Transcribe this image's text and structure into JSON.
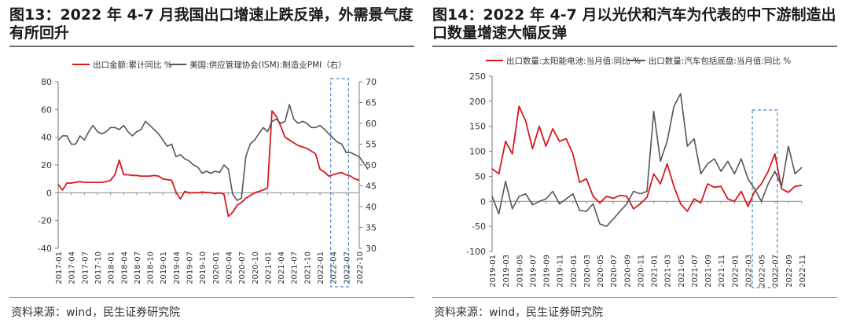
{
  "colors": {
    "red": "#d7191c",
    "gray": "#555555",
    "highlight": "#4a86c5"
  },
  "charts": [
    {
      "title": "图13：2022 年 4-7 月我国出口增速止跌反弹，外需景气度有所回升",
      "source": "资料来源：wind，民生证券研究院"
    },
    {
      "title": "图14：2022 年 4-7 月以光伏和汽车为代表的中下游制造出口数量增速大幅反弹",
      "source": "资料来源：wind，民生证券研究院"
    }
  ],
  "chart_data": [
    {
      "type": "line",
      "title": "2022 年 4-7 月我国出口增速止跌反弹，外需景气度有所回升",
      "x_start": "2017-01",
      "x_tick_labels": [
        "2017-01",
        "2017-04",
        "2017-07",
        "2017-10",
        "2018-01",
        "2018-04",
        "2018-07",
        "2018-10",
        "2019-01",
        "2019-04",
        "2019-07",
        "2019-10",
        "2020-01",
        "2020-04",
        "2020-07",
        "2020-10",
        "2021-01",
        "2021-04",
        "2021-07",
        "2021-10",
        "2022-01",
        "2022-04",
        "2022-07",
        "2022-10"
      ],
      "y_left": {
        "min": -40,
        "max": 80,
        "ticks": [
          -40,
          -20,
          0,
          20,
          40,
          60,
          80
        ]
      },
      "y_right": {
        "min": 30,
        "max": 70,
        "ticks": [
          30,
          35,
          40,
          45,
          50,
          55,
          60,
          65,
          70
        ]
      },
      "highlight": {
        "from": "2022-04",
        "to": "2022-07"
      },
      "legend_position": "top",
      "series": [
        {
          "name": "出口金额:累计同比 %",
          "color": "#d7191c",
          "axis": "left",
          "values": [
            6,
            2,
            7,
            7,
            7.5,
            8,
            7.5,
            7.5,
            7.5,
            7.5,
            7.5,
            8,
            9,
            13,
            23.5,
            13,
            13,
            12.5,
            12.5,
            12,
            12,
            12,
            12.5,
            12,
            10,
            9.5,
            9,
            0.5,
            -4.5,
            1,
            0,
            0,
            0,
            0.5,
            0,
            0,
            -0.5,
            0,
            -1,
            -17,
            -14,
            -9,
            -7,
            -4,
            -2,
            0,
            1,
            2,
            3.5,
            59,
            55,
            48,
            40,
            38,
            36,
            34,
            33,
            32,
            30,
            28,
            17,
            15,
            12,
            13,
            14,
            14.5,
            13,
            12,
            10,
            9
          ]
        },
        {
          "name": "美国:供应管理协会(ISM):制造业PMI（右）",
          "color": "#555555",
          "axis": "right",
          "values": [
            56,
            57,
            57,
            55,
            55,
            57,
            56,
            58,
            59.5,
            58,
            57.5,
            58,
            59,
            59,
            58.5,
            59.5,
            58,
            57,
            58,
            58.5,
            60.5,
            59.5,
            58.5,
            57.5,
            56,
            54.5,
            55,
            52,
            52.5,
            51.5,
            51,
            50,
            49.5,
            48,
            48.5,
            48,
            48.5,
            48.2,
            50,
            49,
            43,
            41.5,
            42,
            52,
            55,
            56,
            57.5,
            59,
            58,
            60.5,
            61,
            60,
            60.5,
            64.5,
            61,
            60,
            60.5,
            60,
            59,
            59,
            59.5,
            58.6,
            57.5,
            56.5,
            55.5,
            55,
            53,
            53,
            52.5,
            52,
            50.5,
            49
          ]
        }
      ]
    },
    {
      "type": "line",
      "title": "2022 年 4-7 月以光伏和汽车为代表的中下游制造出口数量增速大幅反弹",
      "x_start": "2019-01",
      "x_tick_labels": [
        "2019-01",
        "2019-03",
        "2019-05",
        "2019-07",
        "2019-09",
        "2019-11",
        "2020-01",
        "2020-03",
        "2020-05",
        "2020-07",
        "2020-09",
        "2020-11",
        "2021-01",
        "2021-03",
        "2021-05",
        "2021-07",
        "2021-09",
        "2021-11",
        "2022-01",
        "2022-03",
        "2022-05",
        "2022-07",
        "2022-09",
        "2022-11"
      ],
      "y_left": {
        "min": -100,
        "max": 250,
        "ticks": [
          -100,
          -50,
          0,
          50,
          100,
          150,
          200,
          250
        ]
      },
      "highlight": {
        "from": "2022-04",
        "to": "2022-07"
      },
      "legend_position": "top",
      "series": [
        {
          "name": "出口数量:太阳能电池:当月值:同比 %",
          "color": "#d7191c",
          "axis": "left",
          "values": [
            65,
            55,
            120,
            95,
            190,
            160,
            105,
            150,
            110,
            145,
            120,
            125,
            95,
            38,
            45,
            10,
            -3,
            10,
            6,
            12,
            10,
            -15,
            -5,
            8,
            55,
            35,
            75,
            30,
            -5,
            -20,
            5,
            -3,
            35,
            28,
            30,
            5,
            0,
            20,
            -10,
            20,
            35,
            60,
            95,
            25,
            18,
            30,
            32
          ]
        },
        {
          "name": "出口数量:汽车包括底盘:当月值:同比 %",
          "color": "#555555",
          "axis": "left",
          "values": [
            10,
            -25,
            40,
            -15,
            10,
            15,
            -7,
            0,
            5,
            20,
            -5,
            5,
            15,
            -18,
            -20,
            -5,
            -45,
            -50,
            -35,
            -20,
            -5,
            20,
            15,
            20,
            180,
            80,
            120,
            190,
            215,
            110,
            125,
            55,
            75,
            85,
            60,
            80,
            55,
            85,
            45,
            25,
            0,
            35,
            60,
            30,
            110,
            55,
            68
          ]
        }
      ]
    }
  ]
}
